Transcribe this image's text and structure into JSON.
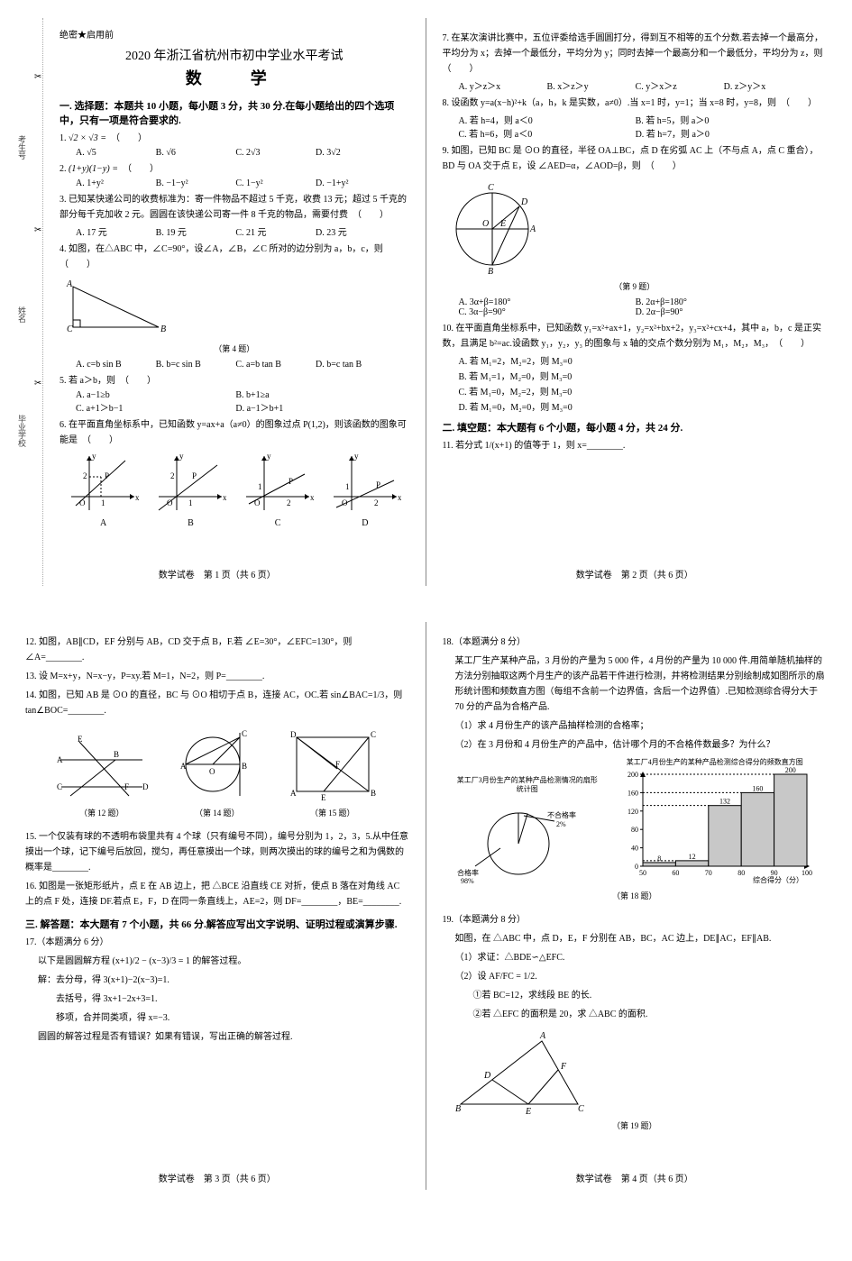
{
  "doc": {
    "secret": "绝密★启用前",
    "title": "2020 年浙江省杭州市初中学业水平考试",
    "subject": "数　学",
    "page_label": "数学试卷",
    "total_pages": "（共 6 页）"
  },
  "binding": {
    "school": "毕业学校",
    "name": "姓名",
    "number": "考生号"
  },
  "sectionA": "一. 选择题：本题共 10 小题，每小题 3 分，共 30 分.在每小题给出的四个选项中，只有一项是符合要求的.",
  "sectionB": "二. 填空题：本大题有 6 个小题，每小题 4 分，共 24 分.",
  "sectionC": "三. 解答题：本大题有 7 个小题，共 66 分.解答应写出文字说明、证明过程或演算步骤.",
  "q1": {
    "stem": "√2 × √3 =",
    "opts": [
      "A. √5",
      "B. √6",
      "C. 2√3",
      "D. 3√2"
    ]
  },
  "q2": {
    "stem": "(1+y)(1−y) =",
    "opts": [
      "A. 1+y²",
      "B. −1−y²",
      "C. 1−y²",
      "D. −1+y²"
    ]
  },
  "q3": {
    "stem": "已知某快递公司的收费标准为：寄一件物品不超过 5 千克，收费 13 元；超过 5 千克的部分每千克加收 2 元。圆圆在该快递公司寄一件 8 千克的物品，需要付费",
    "opts": [
      "A. 17 元",
      "B. 19 元",
      "C. 21 元",
      "D. 23 元"
    ]
  },
  "q4": {
    "stem": "如图，在△ABC 中，∠C=90°，设∠A，∠B，∠C 所对的边分别为 a，b，c，则",
    "caption": "（第 4 题）",
    "opts": [
      "A. c=b sin B",
      "B. b=c sin B",
      "C. a=b tan B",
      "D. b=c tan B"
    ]
  },
  "q5": {
    "stem": "若 a＞b，则",
    "opts": [
      "A. a−1≥b",
      "B. b+1≥a",
      "C. a+1＞b−1",
      "D. a−1＞b+1"
    ]
  },
  "q6": {
    "stem": "在平面直角坐标系中，已知函数 y=ax+a（a≠0）的图象过点 P(1,2)，则该函数的图象可能是",
    "labels": [
      "A",
      "B",
      "C",
      "D"
    ]
  },
  "q7": {
    "stem": "在某次演讲比赛中，五位评委给选手圆圆打分，得到互不相等的五个分数.若去掉一个最高分，平均分为 x；去掉一个最低分，平均分为 y；同时去掉一个最高分和一个最低分，平均分为 z，则",
    "opts": [
      "A. y＞z＞x",
      "B. x＞z＞y",
      "C. y＞x＞z",
      "D. z＞y＞x"
    ]
  },
  "q8": {
    "stem": "设函数 y=a(x−h)²+k（a，h，k 是实数，a≠0）.当 x=1 时，y=1；当 x=8 时，y=8，则",
    "opts": [
      "A. 若 h=4，则 a＜0",
      "B. 若 h=5，则 a＞0",
      "C. 若 h=6，则 a＜0",
      "D. 若 h=7，则 a＞0"
    ]
  },
  "q9": {
    "stem": "如图，已知 BC 是 ⊙O 的直径，半径 OA⊥BC，点 D 在劣弧 AC 上（不与点 A，点 C 重合），BD 与 OA 交于点 E，设 ∠AED=α，∠AOD=β，则",
    "caption": "（第 9 题）",
    "opts": [
      "A. 3α+β=180°",
      "B. 2α+β=180°",
      "C. 3α−β=90°",
      "D. 2α−β=90°"
    ]
  },
  "q10": {
    "stem": "在平面直角坐标系中，已知函数 y₁=x²+ax+1，y₂=x²+bx+2，y₃=x²+cx+4，其中 a，b，c 是正实数，且满足 b²=ac.设函数 y₁，y₂，y₃ 的图象与 x 轴的交点个数分别为 M₁，M₂，M₃，",
    "opts": [
      "A. 若 M₁=2，M₂=2，则 M₃=0",
      "B. 若 M₁=1，M₂=0，则 M₃=0",
      "C. 若 M₁=0，M₂=2，则 M₃=0",
      "D. 若 M₁=0，M₂=0，则 M₃=0"
    ]
  },
  "q11": "若分式 1/(x+1) 的值等于 1，则 x=________.",
  "q12": {
    "stem": "如图，AB∥CD，EF 分别与 AB，CD 交于点 B，F.若 ∠E=30°，∠EFC=130°，则 ∠A=________.",
    "caption": "（第 12 题）"
  },
  "q13": "设 M=x+y，N=x−y，P=xy.若 M=1，N=2，则 P=________.",
  "q14": {
    "stem": "如图，已知 AB 是 ⊙O 的直径，BC 与 ⊙O 相切于点 B，连接 AC，OC.若 sin∠BAC=1/3，则 tan∠BOC=________.",
    "caption": "（第 14 题）"
  },
  "q15": {
    "stem_caption": "（第 15 题）",
    "stem": "一个仅装有球的不透明布袋里共有 4 个球（只有编号不同），编号分别为 1，2，3，5.从中任意摸出一个球，记下编号后放回，搅匀，再任意摸出一个球，则两次摸出的球的编号之和为偶数的概率是________."
  },
  "q16": "如图是一张矩形纸片，点 E 在 AB 边上，把 △BCE 沿直线 CE 对折，使点 B 落在对角线 AC 上的点 F 处，连接 DF.若点 E，F，D 在同一条直线上，AE=2，则 DF=________，BE=________.",
  "q17": {
    "head": "17.（本题满分 6 分）",
    "line1": "以下是圆圆解方程 (x+1)/2 − (x−3)/3 = 1 的解答过程。",
    "line2": "解：去分母，得 3(x+1)−2(x−3)=1.",
    "line3": "去括号，得 3x+1−2x+3=1.",
    "line4": "移项，合并同类项，得 x=−3.",
    "line5": "圆圆的解答过程是否有错误？如果有错误，写出正确的解答过程."
  },
  "q18": {
    "head": "18.（本题满分 8 分）",
    "body": "某工厂生产某种产品，3 月份的产量为 5 000 件，4 月份的产量为 10 000 件.用简单随机抽样的方法分别抽取这两个月生产的该产品若干件进行检测，并将检测结果分别绘制成如图所示的扇形统计图和频数直方图（每组不含前一个边界值，含后一个边界值）.已知检测综合得分大于 70 分的产品为合格产品.",
    "p1": "（1）求 4 月份生产的该产品抽样检测的合格率；",
    "p2": "（2）在 3 月份和 4 月份生产的产品中，估计哪个月的不合格件数最多？为什么？",
    "caption": "（第 18 题）",
    "pie": {
      "title": "某工厂3月份生产的某种产品检测情况的扇形统计图",
      "pass_label": "合格率",
      "pass_pct": "98%",
      "fail_label": "不合格率",
      "fail_pct": "2%"
    },
    "bar": {
      "title": "某工厂4月份生产的某种产品检测综合得分的频数直方图",
      "ylabel_ticks": [
        0,
        40,
        80,
        120,
        160,
        200
      ],
      "x_ticks": [
        50,
        60,
        70,
        80,
        90,
        100
      ],
      "x_axis_label": "综合得分（分）",
      "values": [
        8,
        12,
        132,
        160,
        200
      ],
      "bar_color": "#c8c8c8",
      "border_color": "#000000",
      "label_fontsize": 8
    }
  },
  "q19": {
    "head": "19.（本题满分 8 分）",
    "body": "如图，在 △ABC 中，点 D，E，F 分别在 AB，BC，AC 边上，DE∥AC，EF∥AB.",
    "p1": "（1）求证：△BDE∽△EFC.",
    "p2": "（2）设 AF/FC = 1/2.",
    "p2a": "①若 BC=12，求线段 BE 的长.",
    "p2b": "②若 △EFC 的面积是 20，求 △ABC 的面积.",
    "caption": "（第 19 题）"
  },
  "page_nums": {
    "p1": "第 1 页",
    "p2": "第 2 页",
    "p3": "第 3 页",
    "p4": "第 4 页"
  }
}
